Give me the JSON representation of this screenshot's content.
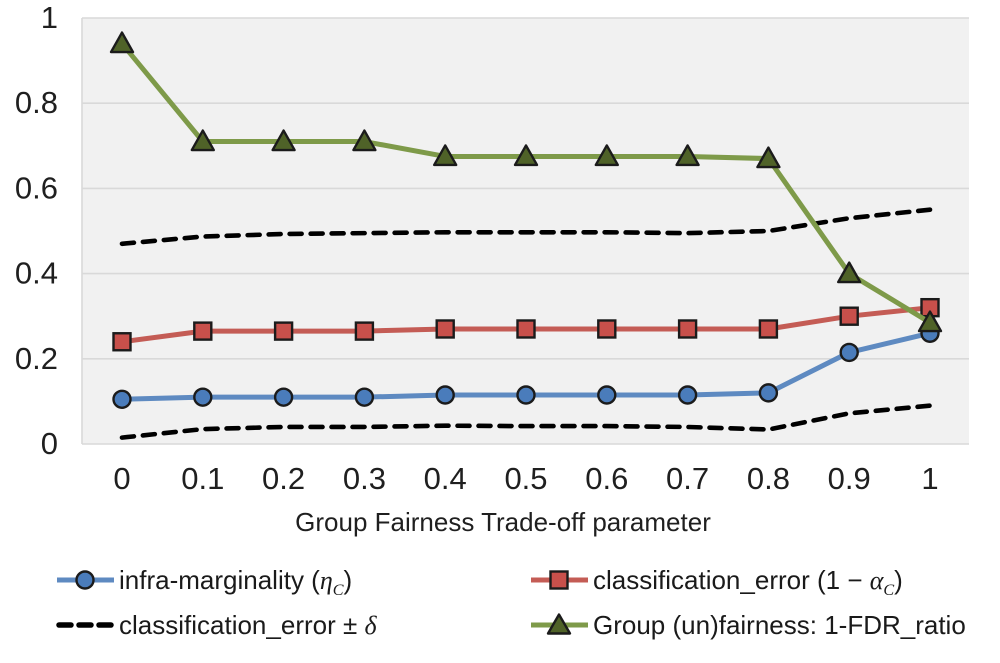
{
  "chart_data": {
    "type": "line",
    "title": "",
    "xlabel": "Group Fairness Trade-off parameter",
    "ylabel": "",
    "x": [
      0,
      0.1,
      0.2,
      0.3,
      0.4,
      0.5,
      0.6,
      0.7,
      0.8,
      0.9,
      1
    ],
    "x_tick_labels": [
      "0",
      "0.1",
      "0.2",
      "0.3",
      "0.4",
      "0.5",
      "0.6",
      "0.7",
      "0.8",
      "0.9",
      "1"
    ],
    "y_ticks": [
      0,
      0.2,
      0.4,
      0.6,
      0.8,
      1
    ],
    "y_tick_labels": [
      "0",
      "0.2",
      "0.4",
      "0.6",
      "0.8",
      "1"
    ],
    "xlim": [
      0,
      1
    ],
    "ylim": [
      0,
      1
    ],
    "grid": "horizontal",
    "legend_position": "bottom",
    "series": [
      {
        "name": "infra-marginality (η_C)",
        "marker": "circle",
        "dashed": false,
        "line_color": "#5E8ac1",
        "marker_color": "#4a7cbb",
        "values": [
          0.105,
          0.11,
          0.11,
          0.11,
          0.115,
          0.115,
          0.115,
          0.115,
          0.12,
          0.215,
          0.26
        ]
      },
      {
        "name": "classification_error (1 − α_C)",
        "marker": "square",
        "dashed": false,
        "line_color": "#c45c55",
        "marker_color": "#c8504b",
        "values": [
          0.24,
          0.265,
          0.265,
          0.265,
          0.27,
          0.27,
          0.27,
          0.27,
          0.27,
          0.3,
          0.32
        ]
      },
      {
        "name": "classification_error + δ",
        "marker": "none",
        "dashed": true,
        "line_color": "#000000",
        "marker_color": "#000000",
        "values": [
          0.47,
          0.487,
          0.493,
          0.495,
          0.497,
          0.497,
          0.497,
          0.495,
          0.5,
          0.53,
          0.55
        ]
      },
      {
        "name": "classification_error − δ",
        "marker": "none",
        "dashed": true,
        "line_color": "#000000",
        "marker_color": "#000000",
        "values": [
          0.015,
          0.035,
          0.04,
          0.04,
          0.043,
          0.042,
          0.042,
          0.04,
          0.034,
          0.072,
          0.09
        ]
      },
      {
        "name": "Group (un)fairness: 1-FDR_ratio",
        "marker": "triangle",
        "dashed": false,
        "line_color": "#7e9a49",
        "marker_color": "#4f6228",
        "values": [
          0.94,
          0.71,
          0.71,
          0.71,
          0.675,
          0.675,
          0.675,
          0.675,
          0.67,
          0.4,
          0.285
        ]
      }
    ]
  },
  "colors": {
    "plot_bg": "#f1f1f1",
    "grid": "#d9d9d9",
    "marker_stroke": "#1b1b1b",
    "text": "#1f1f1f"
  },
  "legend": {
    "items": [
      {
        "pre": "infra-marginality (",
        "sym": "η",
        "sub": "C",
        "post": ")",
        "marker": "circle",
        "line": "#5E8ac1",
        "fill": "#4a7cbb"
      },
      {
        "pre": "classification_error (1 − ",
        "sym": "α",
        "sub": "C",
        "post": ")",
        "marker": "square",
        "line": "#c45c55",
        "fill": "#c8504b"
      },
      {
        "pre": "classification_error ± ",
        "sym": "δ",
        "sub": "",
        "post": "",
        "marker": "dashed",
        "line": "#000000",
        "fill": "#000000"
      },
      {
        "pre": "Group (un)fairness: 1-FDR_ratio",
        "sym": "",
        "sub": "",
        "post": "",
        "marker": "triangle",
        "line": "#7e9a49",
        "fill": "#4f6228"
      }
    ]
  }
}
